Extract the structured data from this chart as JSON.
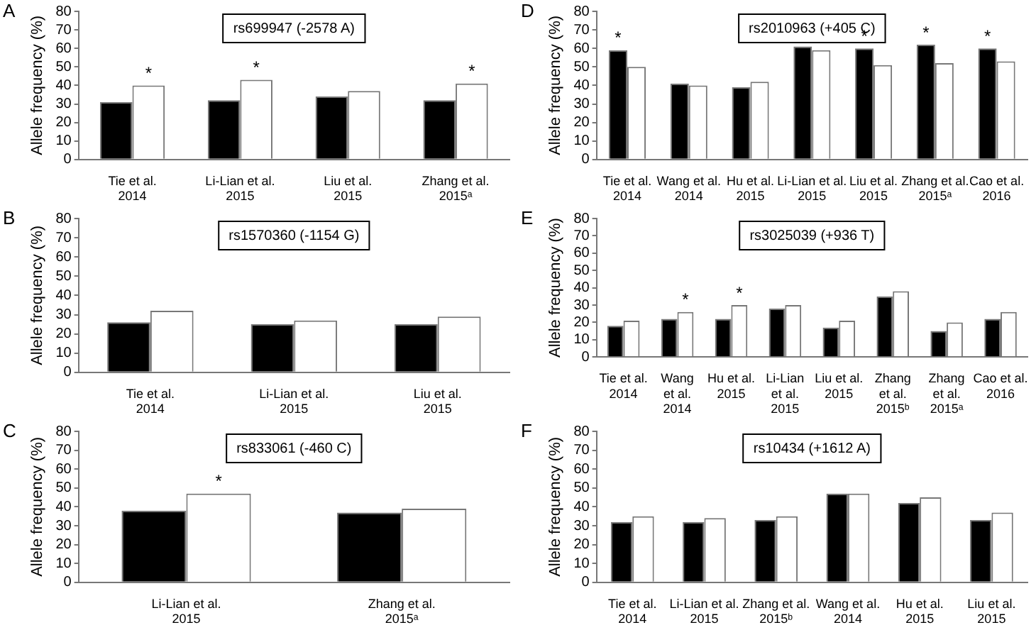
{
  "chart_data": [
    {
      "type": "bar",
      "title": "rs699947 (-2578 A)",
      "ylabel": "Allele frequency (%)",
      "categories": [
        "Tie et al.\n2014",
        "Li-Lian et al.\n2015",
        "Liu et al.\n2015",
        "Zhang et al.\n2015ᵃ"
      ],
      "series": [
        {
          "color": "#000000",
          "values": [
            31,
            32,
            34,
            32
          ]
        },
        {
          "color": "#ffffff",
          "values": [
            40,
            43,
            37,
            41
          ],
          "value_labels": [
            "*",
            "*",
            null,
            "*"
          ]
        }
      ],
      "ylim": [
        0,
        80
      ],
      "yticks": [
        0,
        10,
        20,
        30,
        40,
        50,
        60,
        70,
        80
      ],
      "grid": false,
      "legend": false,
      "annotations": [
        "A"
      ]
    },
    {
      "type": "bar",
      "title": "rs2010963 (+405 C)",
      "ylabel": "Allele frequency (%)",
      "categories": [
        "Tie et al.\n2014",
        "Wang et al.\n2014",
        "Hu et al.\n2015",
        "Li-Lian et al.\n2015",
        "Liu et al.\n2015",
        "Zhang et al.\n2015ᵃ",
        "Cao et al.\n2016"
      ],
      "series": [
        {
          "color": "#000000",
          "values": [
            59,
            41,
            39,
            61,
            60,
            62,
            60
          ],
          "value_labels": [
            "*",
            null,
            null,
            null,
            "*",
            "*",
            "*"
          ]
        },
        {
          "color": "#ffffff",
          "values": [
            50,
            40,
            42,
            59,
            51,
            52,
            53
          ]
        }
      ],
      "ylim": [
        0,
        80
      ],
      "yticks": [
        0,
        10,
        20,
        30,
        40,
        50,
        60,
        70,
        80
      ],
      "grid": false,
      "legend": false,
      "annotations": [
        "D"
      ]
    },
    {
      "type": "bar",
      "title": "rs1570360 (-1154 G)",
      "ylabel": "Allele frequency (%)",
      "categories": [
        "Tie et al.\n2014",
        "Li-Lian et al.\n2015",
        "Liu et al.\n2015"
      ],
      "series": [
        {
          "color": "#000000",
          "values": [
            26,
            25,
            25
          ]
        },
        {
          "color": "#ffffff",
          "values": [
            32,
            27,
            29
          ]
        }
      ],
      "ylim": [
        0,
        80
      ],
      "yticks": [
        0,
        10,
        20,
        30,
        40,
        50,
        60,
        70,
        80
      ],
      "grid": false,
      "legend": false,
      "annotations": [
        "B"
      ]
    },
    {
      "type": "bar",
      "title": "rs3025039 (+936 T)",
      "ylabel": "Allele frequency (%)",
      "categories": [
        "Tie et al.\n2014",
        "Wang\net al.\n2014",
        "Hu et al.\n2015",
        "Li-Lian\net al.\n2015",
        "Liu et al.\n2015",
        "Zhang\net al.\n2015ᵇ",
        "Zhang\net al.\n2015ᵃ",
        "Cao et al.\n2016"
      ],
      "series": [
        {
          "color": "#000000",
          "values": [
            18,
            22,
            22,
            28,
            17,
            35,
            15,
            22
          ]
        },
        {
          "color": "#ffffff",
          "values": [
            21,
            26,
            30,
            30,
            21,
            38,
            20,
            26
          ],
          "value_labels": [
            null,
            "*",
            "*",
            null,
            null,
            null,
            null,
            null
          ]
        }
      ],
      "ylim": [
        0,
        80
      ],
      "yticks": [
        0,
        10,
        20,
        30,
        40,
        50,
        60,
        70,
        80
      ],
      "grid": false,
      "legend": false,
      "annotations": [
        "E"
      ]
    },
    {
      "type": "bar",
      "title": "rs833061 (-460 C)",
      "ylabel": "Allele frequency (%)",
      "categories": [
        "Li-Lian et al.\n2015",
        "Zhang et al.\n2015ᵃ"
      ],
      "series": [
        {
          "color": "#000000",
          "values": [
            38,
            37
          ]
        },
        {
          "color": "#ffffff",
          "values": [
            47,
            39
          ],
          "value_labels": [
            "*",
            null
          ]
        }
      ],
      "ylim": [
        0,
        80
      ],
      "yticks": [
        0,
        10,
        20,
        30,
        40,
        50,
        60,
        70,
        80
      ],
      "grid": false,
      "legend": false,
      "annotations": [
        "C"
      ]
    },
    {
      "type": "bar",
      "title": "rs10434 (+1612 A)",
      "ylabel": "Allele frequency (%)",
      "categories": [
        "Tie et al.\n2014",
        "Li-Lian et al.\n2015",
        "Zhang et al.\n2015ᵇ",
        "Wang et al.\n2014",
        "Hu et al.\n2015",
        "Liu et al.\n2015"
      ],
      "series": [
        {
          "color": "#000000",
          "values": [
            32,
            32,
            33,
            47,
            42,
            33
          ]
        },
        {
          "color": "#ffffff",
          "values": [
            35,
            34,
            35,
            47,
            45,
            37
          ]
        }
      ],
      "ylim": [
        0,
        80
      ],
      "yticks": [
        0,
        10,
        20,
        30,
        40,
        50,
        60,
        70,
        80
      ],
      "grid": false,
      "legend": false,
      "annotations": [
        "F"
      ]
    }
  ]
}
